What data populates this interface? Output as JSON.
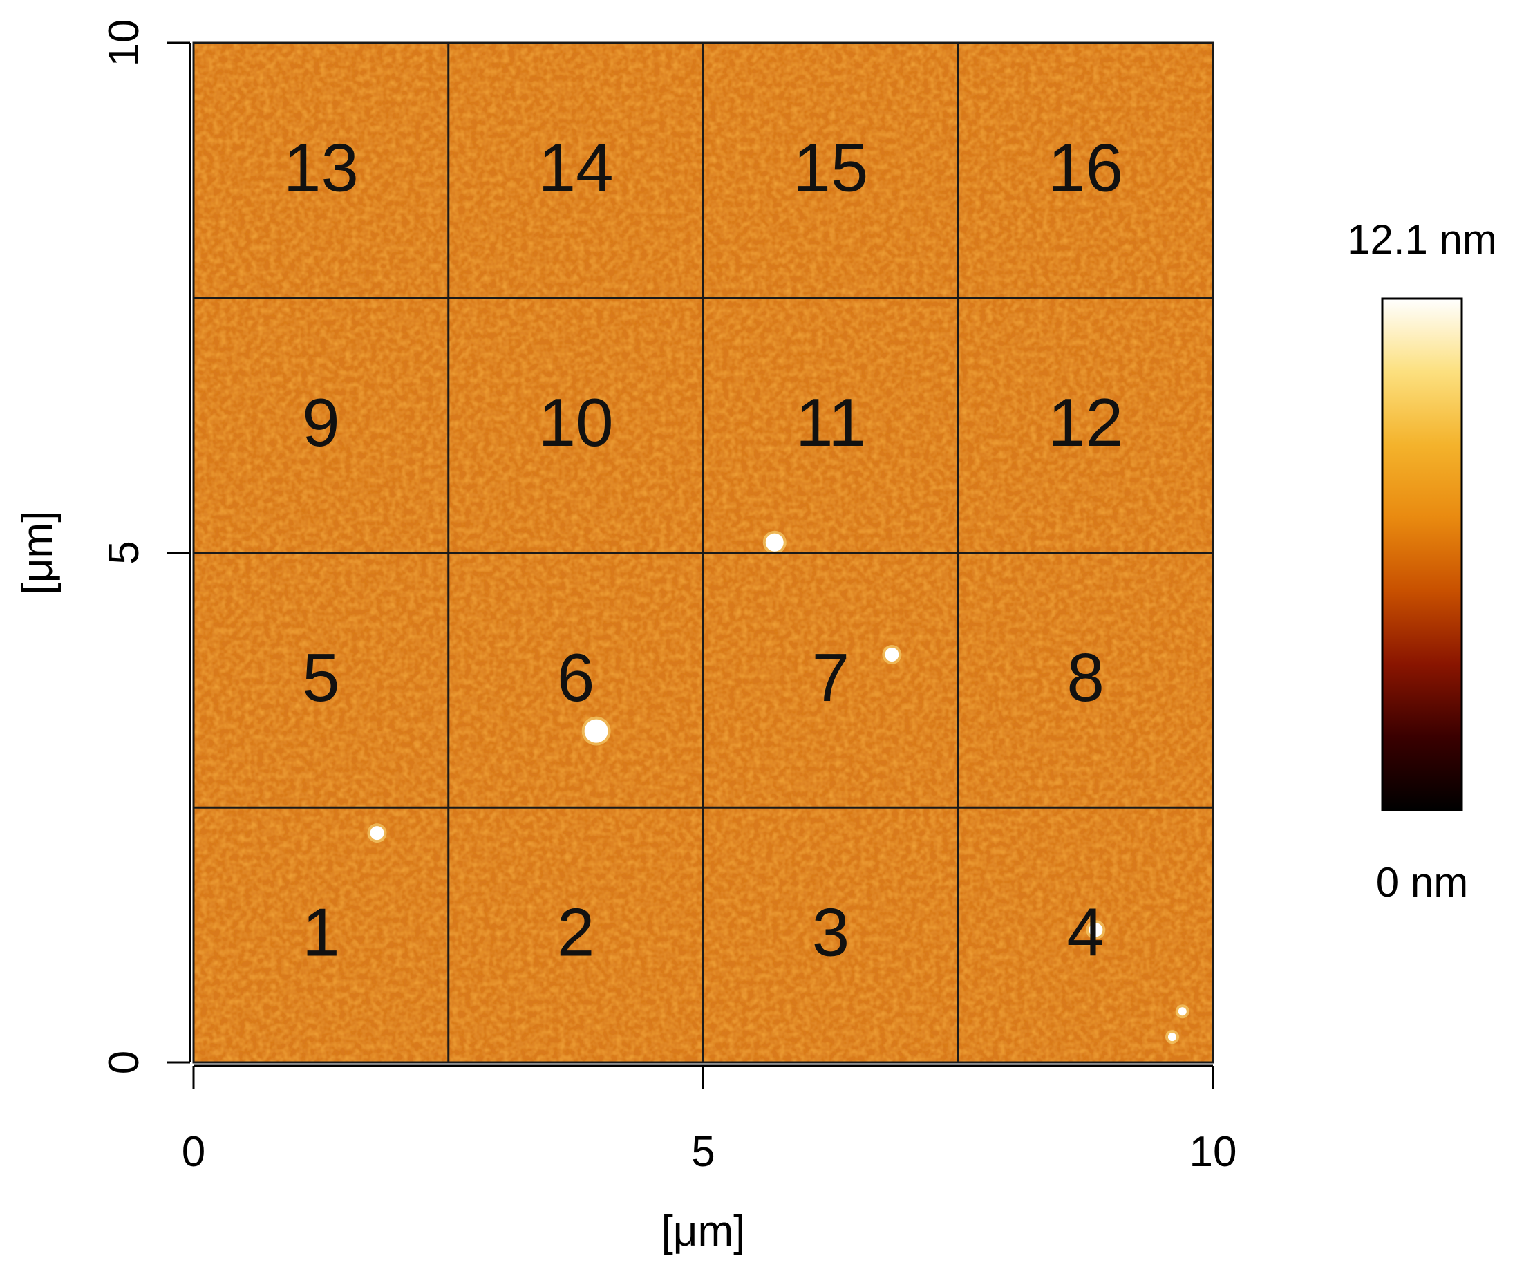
{
  "chart_data": {
    "type": "heatmap",
    "description_type": "afm-height-map",
    "title": "",
    "xlabel": "[μm]",
    "ylabel": "[μm]",
    "xlim": [
      0,
      10
    ],
    "ylim": [
      0,
      10
    ],
    "x_ticks": [
      "0",
      "5",
      "10"
    ],
    "y_ticks": [
      "0",
      "5",
      "10"
    ],
    "grid": {
      "rows": 4,
      "cols": 4,
      "x_divisions": [
        0,
        2.5,
        5,
        7.5,
        10
      ],
      "y_divisions": [
        0,
        2.5,
        5,
        7.5,
        10
      ]
    },
    "regions": [
      {
        "label": "1",
        "row": 0,
        "col": 0
      },
      {
        "label": "2",
        "row": 0,
        "col": 1
      },
      {
        "label": "3",
        "row": 0,
        "col": 2
      },
      {
        "label": "4",
        "row": 0,
        "col": 3
      },
      {
        "label": "5",
        "row": 1,
        "col": 0
      },
      {
        "label": "6",
        "row": 1,
        "col": 1
      },
      {
        "label": "7",
        "row": 1,
        "col": 2
      },
      {
        "label": "8",
        "row": 1,
        "col": 3
      },
      {
        "label": "9",
        "row": 2,
        "col": 0
      },
      {
        "label": "10",
        "row": 2,
        "col": 1
      },
      {
        "label": "11",
        "row": 2,
        "col": 2
      },
      {
        "label": "12",
        "row": 2,
        "col": 3
      },
      {
        "label": "13",
        "row": 3,
        "col": 0
      },
      {
        "label": "14",
        "row": 3,
        "col": 1
      },
      {
        "label": "15",
        "row": 3,
        "col": 2
      },
      {
        "label": "16",
        "row": 3,
        "col": 3
      }
    ],
    "colorbar": {
      "max_label": "12.1 nm",
      "min_label": "0 nm",
      "max_value": 12.1,
      "min_value": 0,
      "unit": "nm",
      "colors": [
        "#000000",
        "#3a0000",
        "#8a1500",
        "#c85000",
        "#e98a10",
        "#f4b32c",
        "#fce07f",
        "#ffffff"
      ]
    },
    "surface_color": "#d97a1e",
    "particles": [
      {
        "x": 1.8,
        "y": 2.25,
        "size": "small"
      },
      {
        "x": 3.95,
        "y": 3.25,
        "size": "large"
      },
      {
        "x": 5.7,
        "y": 5.1,
        "size": "medium"
      },
      {
        "x": 6.85,
        "y": 4.0,
        "size": "small"
      },
      {
        "x": 8.85,
        "y": 1.3,
        "size": "small"
      },
      {
        "x": 9.7,
        "y": 0.5,
        "size": "tiny"
      },
      {
        "x": 9.6,
        "y": 0.25,
        "size": "tiny"
      }
    ]
  }
}
